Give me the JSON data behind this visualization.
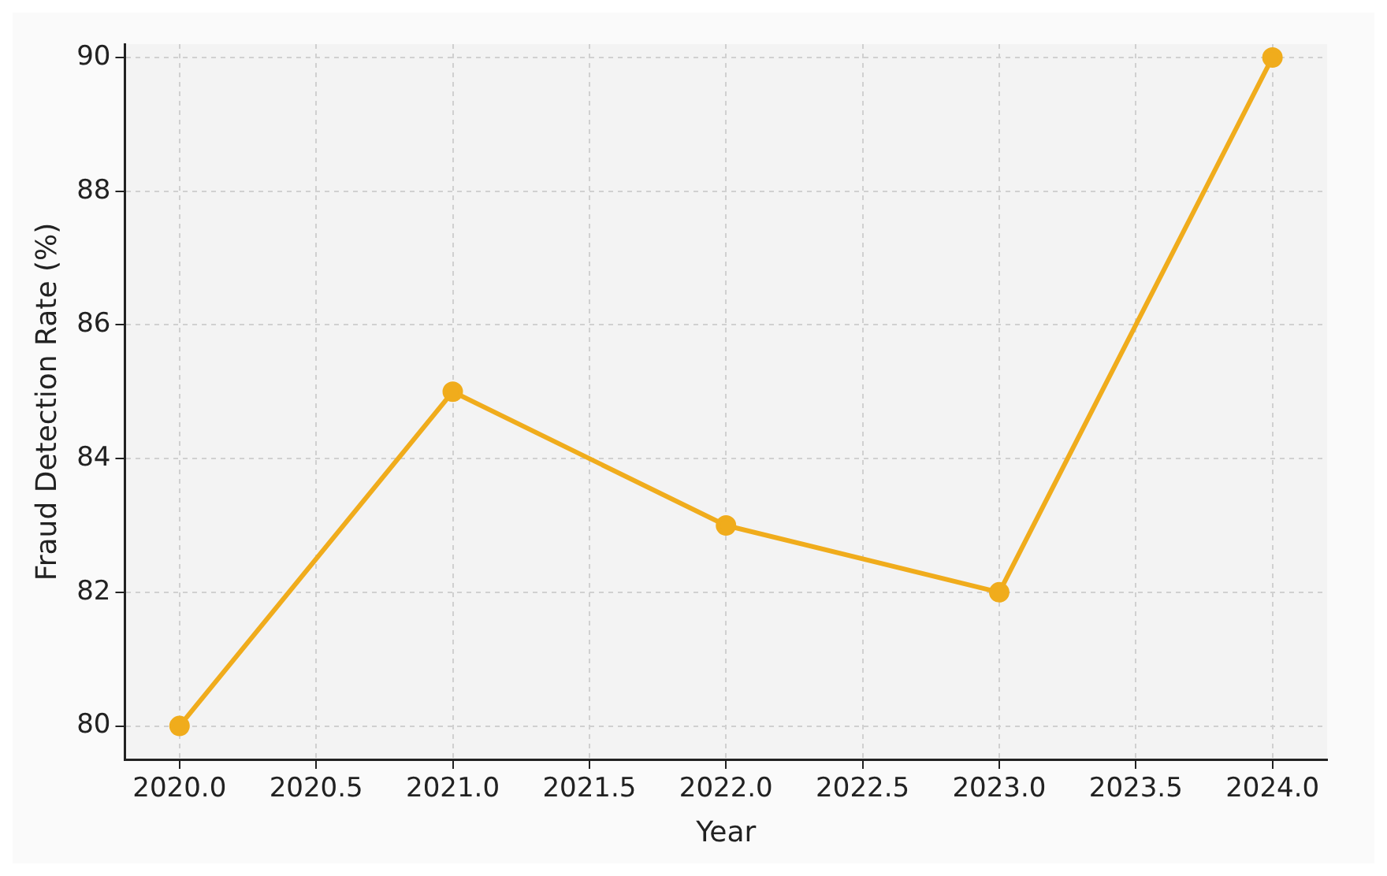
{
  "chart_data": {
    "type": "line",
    "xlabel": "Year",
    "ylabel": "Fraud Detection Rate (%)",
    "x": [
      2020,
      2021,
      2022,
      2023,
      2024
    ],
    "series": [
      {
        "color": "#f0ac1c",
        "values": [
          80,
          85,
          83,
          82,
          90
        ]
      }
    ],
    "xlim": [
      2019.8,
      2024.2
    ],
    "ylim": [
      79.5,
      90.2
    ],
    "xticks": [
      {
        "value": 2020,
        "label": "2020.0"
      },
      {
        "value": 2020.5,
        "label": "2020.5"
      },
      {
        "value": 2021,
        "label": "2021.0"
      },
      {
        "value": 2021.5,
        "label": "2021.5"
      },
      {
        "value": 2022,
        "label": "2022.0"
      },
      {
        "value": 2022.5,
        "label": "2022.5"
      },
      {
        "value": 2023,
        "label": "2023.0"
      },
      {
        "value": 2023.5,
        "label": "2023.5"
      },
      {
        "value": 2024,
        "label": "2024.0"
      }
    ],
    "yticks": [
      80,
      82,
      84,
      86,
      88,
      90
    ],
    "grid": true,
    "legend": false,
    "marker": "circle",
    "line_style": "solid"
  }
}
